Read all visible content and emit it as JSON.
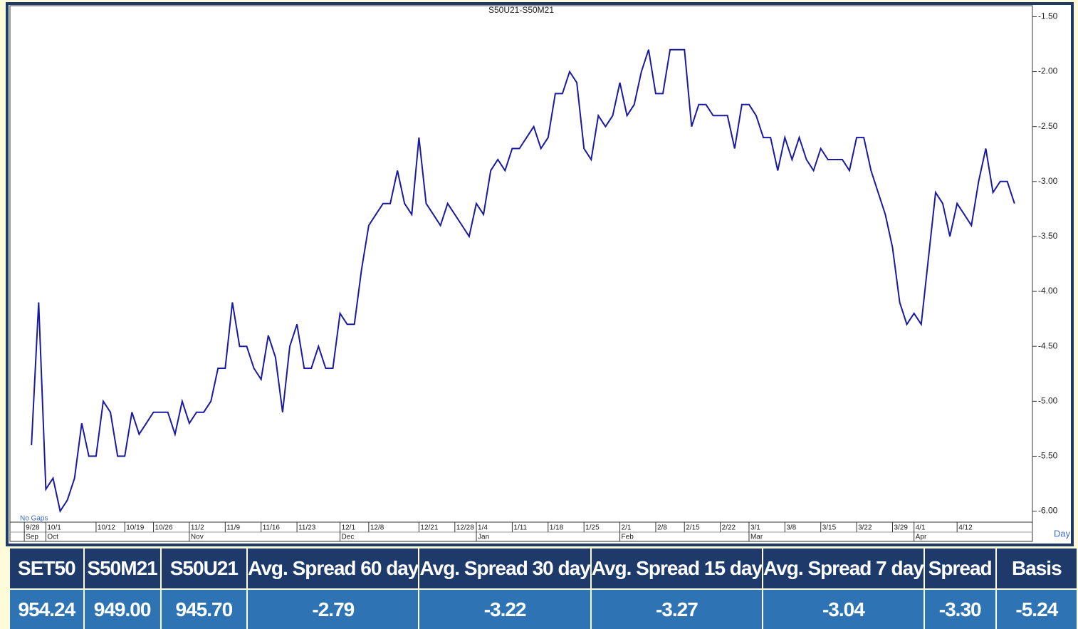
{
  "chart_data": {
    "type": "line",
    "title": "S50U21-S50M21",
    "note": "No Gaps",
    "x_label": "Day",
    "series": [
      {
        "name": "S50U21-S50M21",
        "color": "#1a1aa0",
        "values": [
          -5.4,
          -4.1,
          -5.8,
          -5.7,
          -6.0,
          -5.9,
          -5.7,
          -5.2,
          -5.5,
          -5.5,
          -5.0,
          -5.1,
          -5.5,
          -5.5,
          -5.1,
          -5.3,
          -5.2,
          -5.1,
          -5.1,
          -5.1,
          -5.3,
          -5.0,
          -5.2,
          -5.1,
          -5.1,
          -5.0,
          -4.7,
          -4.7,
          -4.1,
          -4.5,
          -4.5,
          -4.7,
          -4.8,
          -4.4,
          -4.6,
          -5.1,
          -4.5,
          -4.3,
          -4.7,
          -4.7,
          -4.5,
          -4.7,
          -4.7,
          -4.2,
          -4.3,
          -4.3,
          -3.8,
          -3.4,
          -3.3,
          -3.2,
          -3.2,
          -2.9,
          -3.2,
          -3.3,
          -2.6,
          -3.2,
          -3.3,
          -3.4,
          -3.2,
          -3.3,
          -3.4,
          -3.5,
          -3.2,
          -3.3,
          -2.9,
          -2.8,
          -2.9,
          -2.7,
          -2.7,
          -2.6,
          -2.5,
          -2.7,
          -2.6,
          -2.2,
          -2.2,
          -2.0,
          -2.1,
          -2.7,
          -2.8,
          -2.4,
          -2.5,
          -2.4,
          -2.1,
          -2.4,
          -2.3,
          -2.0,
          -1.8,
          -2.2,
          -2.2,
          -1.8,
          -1.8,
          -1.8,
          -2.5,
          -2.3,
          -2.3,
          -2.4,
          -2.4,
          -2.4,
          -2.7,
          -2.3,
          -2.3,
          -2.4,
          -2.6,
          -2.6,
          -2.9,
          -2.6,
          -2.8,
          -2.6,
          -2.8,
          -2.9,
          -2.7,
          -2.8,
          -2.8,
          -2.8,
          -2.9,
          -2.6,
          -2.6,
          -2.9,
          -3.1,
          -3.3,
          -3.6,
          -4.1,
          -4.3,
          -4.2,
          -4.3,
          -3.7,
          -3.1,
          -3.2,
          -3.5,
          -3.2,
          -3.3,
          -3.4,
          -3.0,
          -2.7,
          -3.1,
          -3.0,
          -3.0,
          -3.2
        ]
      }
    ],
    "xlim": [
      -3,
      139.5
    ],
    "xticks": [
      {
        "value": -1,
        "label": "9/28"
      },
      {
        "value": 2,
        "label": "10/1"
      },
      {
        "value": 9,
        "label": "10/12"
      },
      {
        "value": 13,
        "label": "10/19"
      },
      {
        "value": 17,
        "label": "10/26"
      },
      {
        "value": 22,
        "label": "11/2"
      },
      {
        "value": 27,
        "label": "11/9"
      },
      {
        "value": 32,
        "label": "11/16"
      },
      {
        "value": 37,
        "label": "11/23"
      },
      {
        "value": 43,
        "label": "12/1"
      },
      {
        "value": 47,
        "label": "12/8"
      },
      {
        "value": 54,
        "label": "12/21"
      },
      {
        "value": 59,
        "label": "12/28"
      },
      {
        "value": 62,
        "label": "1/4"
      },
      {
        "value": 67,
        "label": "1/11"
      },
      {
        "value": 72,
        "label": "1/18"
      },
      {
        "value": 77,
        "label": "1/25"
      },
      {
        "value": 82,
        "label": "2/1"
      },
      {
        "value": 87,
        "label": "2/8"
      },
      {
        "value": 91,
        "label": "2/15"
      },
      {
        "value": 96,
        "label": "2/22"
      },
      {
        "value": 100,
        "label": "3/1"
      },
      {
        "value": 105,
        "label": "3/8"
      },
      {
        "value": 110,
        "label": "3/15"
      },
      {
        "value": 115,
        "label": "3/22"
      },
      {
        "value": 120,
        "label": "3/29"
      },
      {
        "value": 123,
        "label": "4/1"
      },
      {
        "value": 129,
        "label": "4/12"
      }
    ],
    "month_ticks": [
      {
        "value": -1,
        "label": "Sep"
      },
      {
        "value": 2,
        "label": "Oct"
      },
      {
        "value": 22,
        "label": "Nov"
      },
      {
        "value": 43,
        "label": "Dec"
      },
      {
        "value": 62,
        "label": "Jan"
      },
      {
        "value": 82,
        "label": "Feb"
      },
      {
        "value": 100,
        "label": "Mar"
      },
      {
        "value": 123,
        "label": "Apr"
      }
    ],
    "ylim": [
      -6.1,
      -1.4
    ],
    "yticks": [
      {
        "value": -1.5,
        "label": "-1.50"
      },
      {
        "value": -2.0,
        "label": "-2.00"
      },
      {
        "value": -2.5,
        "label": "-2.50"
      },
      {
        "value": -3.0,
        "label": "-3.00"
      },
      {
        "value": -3.5,
        "label": "-3.50"
      },
      {
        "value": -4.0,
        "label": "-4.00"
      },
      {
        "value": -4.5,
        "label": "-4.50"
      },
      {
        "value": -5.0,
        "label": "-5.00"
      },
      {
        "value": -5.5,
        "label": "-5.50"
      },
      {
        "value": -6.0,
        "label": "-6.00"
      }
    ],
    "y_axis_side": "right"
  },
  "table": {
    "header": [
      "SET50",
      "S50M21",
      "S50U21",
      "Avg. Spread 60 day",
      "Avg. Spread 30 day",
      "Avg. Spread 15 day",
      "Avg. Spread 7 day",
      "Spread",
      "Basis"
    ],
    "rows": [
      [
        "954.24",
        "949.00",
        "945.70",
        "-2.79",
        "-3.22",
        "-3.27",
        "-3.04",
        "-3.30",
        "-5.24"
      ]
    ]
  }
}
